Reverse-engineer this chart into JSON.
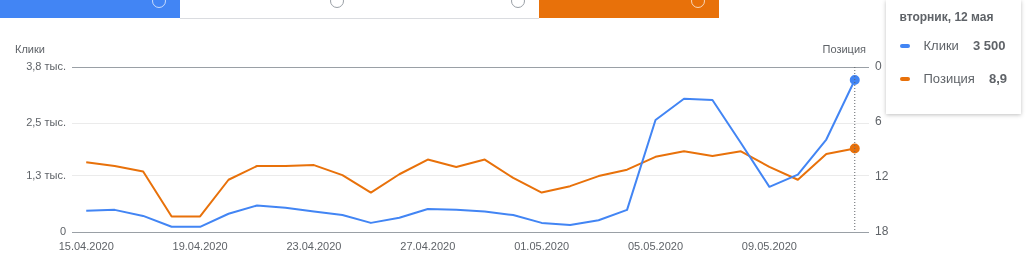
{
  "chart_data": {
    "type": "line",
    "ylabel": "Клики",
    "y2label": "Позиция",
    "x": [
      "2020-04-15",
      "2020-04-16",
      "2020-04-17",
      "2020-04-18",
      "2020-04-19",
      "2020-04-20",
      "2020-04-21",
      "2020-04-22",
      "2020-04-23",
      "2020-04-24",
      "2020-04-25",
      "2020-04-26",
      "2020-04-27",
      "2020-04-28",
      "2020-04-29",
      "2020-04-30",
      "2020-05-01",
      "2020-05-02",
      "2020-05-03",
      "2020-05-04",
      "2020-05-05",
      "2020-05-06",
      "2020-05-07",
      "2020-05-08",
      "2020-05-09",
      "2020-05-10",
      "2020-05-11",
      "2020-05-12"
    ],
    "series": [
      {
        "name": "Клики",
        "color": "#4285f4",
        "values": [
          0.49,
          0.51,
          0.37,
          0.12,
          0.12,
          0.42,
          0.61,
          0.56,
          0.47,
          0.39,
          0.21,
          0.33,
          0.53,
          0.51,
          0.47,
          0.39,
          0.21,
          0.16,
          0.27,
          0.51,
          2.58,
          3.07,
          3.04,
          2.05,
          1.04,
          1.32,
          2.13,
          3.5
        ]
      },
      {
        "name": "Позиция",
        "color": "#e8710a",
        "axis": "y2",
        "values": [
          10.4,
          10.8,
          11.4,
          16.3,
          16.3,
          12.3,
          10.8,
          10.8,
          10.7,
          11.8,
          13.7,
          11.7,
          10.1,
          10.9,
          10.1,
          12.1,
          13.7,
          13.0,
          11.9,
          11.2,
          9.8,
          9.2,
          9.7,
          9.2,
          10.9,
          12.3,
          9.5,
          8.9
        ]
      }
    ],
    "xlim": [
      "2020-04-14T12:00",
      "2020-05-12T12:00"
    ],
    "xticks": [
      {
        "value": "2020-04-15",
        "label": "15.04.2020"
      },
      {
        "value": "2020-04-19",
        "label": "19.04.2020"
      },
      {
        "value": "2020-04-23",
        "label": "23.04.2020"
      },
      {
        "value": "2020-04-27",
        "label": "27.04.2020"
      },
      {
        "value": "2020-05-01",
        "label": "01.05.2020"
      },
      {
        "value": "2020-05-05",
        "label": "05.05.2020"
      },
      {
        "value": "2020-05-09",
        "label": "09.05.2020"
      }
    ],
    "ylim": [
      0,
      3.8
    ],
    "yticks": [
      0,
      {
        "value": 1.3,
        "label": "1,3 тыс."
      },
      {
        "value": 2.5,
        "label": "2,5 тыс."
      },
      {
        "value": 3.8,
        "label": "3,8 тыс."
      }
    ],
    "y2lim": [
      18,
      0
    ],
    "y2ticks": [
      0,
      6,
      12,
      18
    ],
    "ref_lines": [
      {
        "axis": "x",
        "value": "2020-05-12",
        "color": "#5f6368",
        "line_style": "dotted"
      }
    ],
    "annotations": [
      "вторник, 12 мая",
      "3 500",
      "8,9"
    ],
    "grid": "y",
    "legend": "top right"
  }
}
